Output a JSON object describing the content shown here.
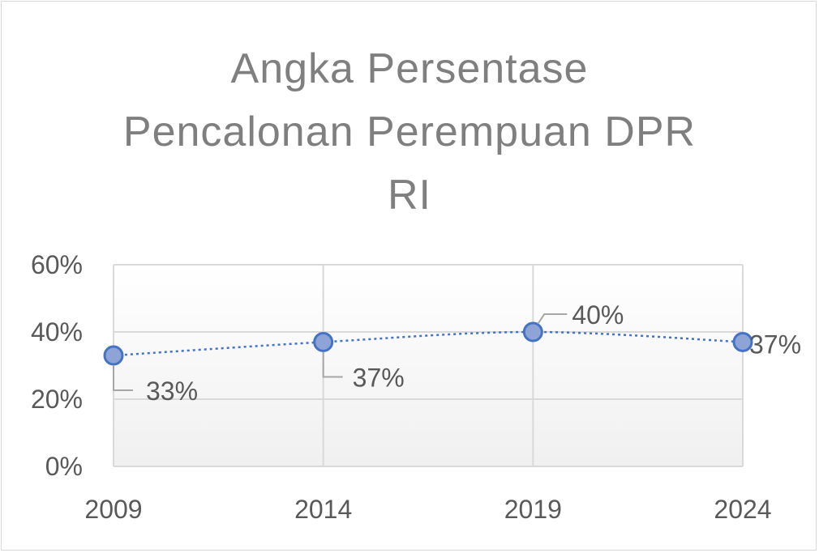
{
  "chart_data": {
    "type": "line",
    "title_lines": [
      "Angka Persentase",
      "Pencalonan Perempuan DPR",
      "RI"
    ],
    "categories": [
      "2009",
      "2014",
      "2019",
      "2024"
    ],
    "series": [
      {
        "values": [
          0.33,
          0.37,
          0.4,
          0.37
        ],
        "labels": [
          "33%",
          "37%",
          "40%",
          "37%"
        ]
      }
    ],
    "y_ticks": [
      "0%",
      "20%",
      "40%",
      "60%"
    ],
    "ylim": [
      0,
      0.6
    ],
    "xlabel": "",
    "ylabel": "",
    "grid": true,
    "legend": "none",
    "colors": {
      "marker_fill": "#8ea3d6",
      "marker_stroke": "#4472c4",
      "line": "#4472c4",
      "grid": "#d9d9d9",
      "leader": "#a6a6a6"
    }
  }
}
